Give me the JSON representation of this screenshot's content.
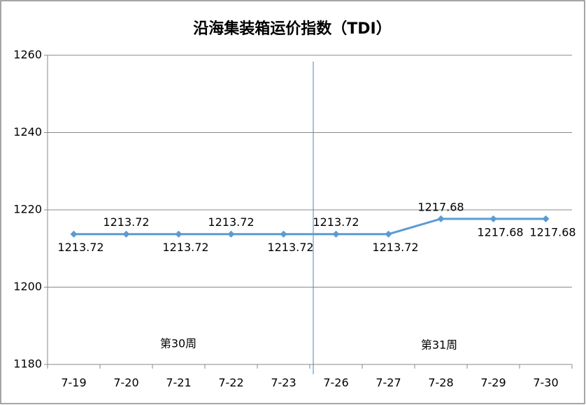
{
  "chart_data": {
    "type": "line",
    "title": "沿海集装箱运价指数（TDI）",
    "categories": [
      "7-19",
      "7-20",
      "7-21",
      "7-22",
      "7-23",
      "7-26",
      "7-27",
      "7-28",
      "7-29",
      "7-30"
    ],
    "values": [
      1213.72,
      1213.72,
      1213.72,
      1213.72,
      1213.72,
      1213.72,
      1213.72,
      1217.68,
      1217.68,
      1217.68
    ],
    "color": "#5b9bd5",
    "ylim": [
      1180,
      1260
    ],
    "yticks": [
      1180,
      1200,
      1220,
      1240,
      1260
    ],
    "grid": true,
    "annotations": [
      "第30周",
      "第31周"
    ]
  }
}
